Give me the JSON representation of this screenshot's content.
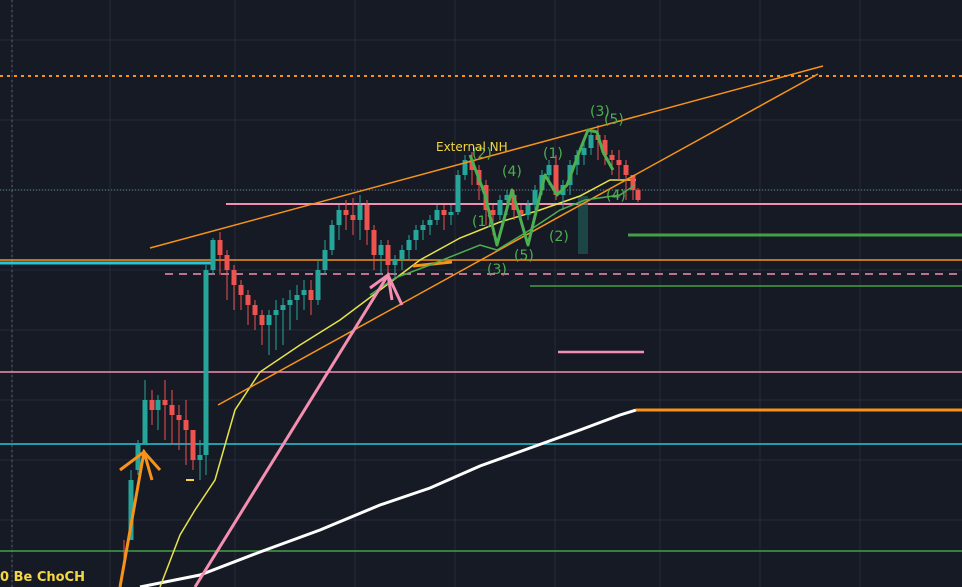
{
  "colors": {
    "background": "#161a25",
    "grid": "#262b38",
    "bull": "#26a69a",
    "bear": "#ef5350",
    "orange": "#f7931a",
    "pink": "#f48fb1",
    "green": "#43a047",
    "wave_green": "#4caf50",
    "cyan": "#26c6da",
    "white": "#ffffff",
    "yellow_ma": "#e6e34a",
    "label_yellow": "#f5d742"
  },
  "annotations": {
    "external_nh": "External NH",
    "choch": "0 Be ChoCH",
    "waves": [
      "(2)",
      "(4)",
      "(1)",
      "(3)",
      "(5)",
      "(1)",
      "(2)",
      "(3)",
      "(5)",
      "(4)"
    ]
  },
  "chart_data": {
    "type": "candlestick",
    "title": "",
    "xlabel": "",
    "ylabel": "",
    "grid": true,
    "annotations": [
      "External NH",
      "0 Be ChoCH",
      "(1)",
      "(2)",
      "(3)",
      "(4)",
      "(5)"
    ]
  }
}
